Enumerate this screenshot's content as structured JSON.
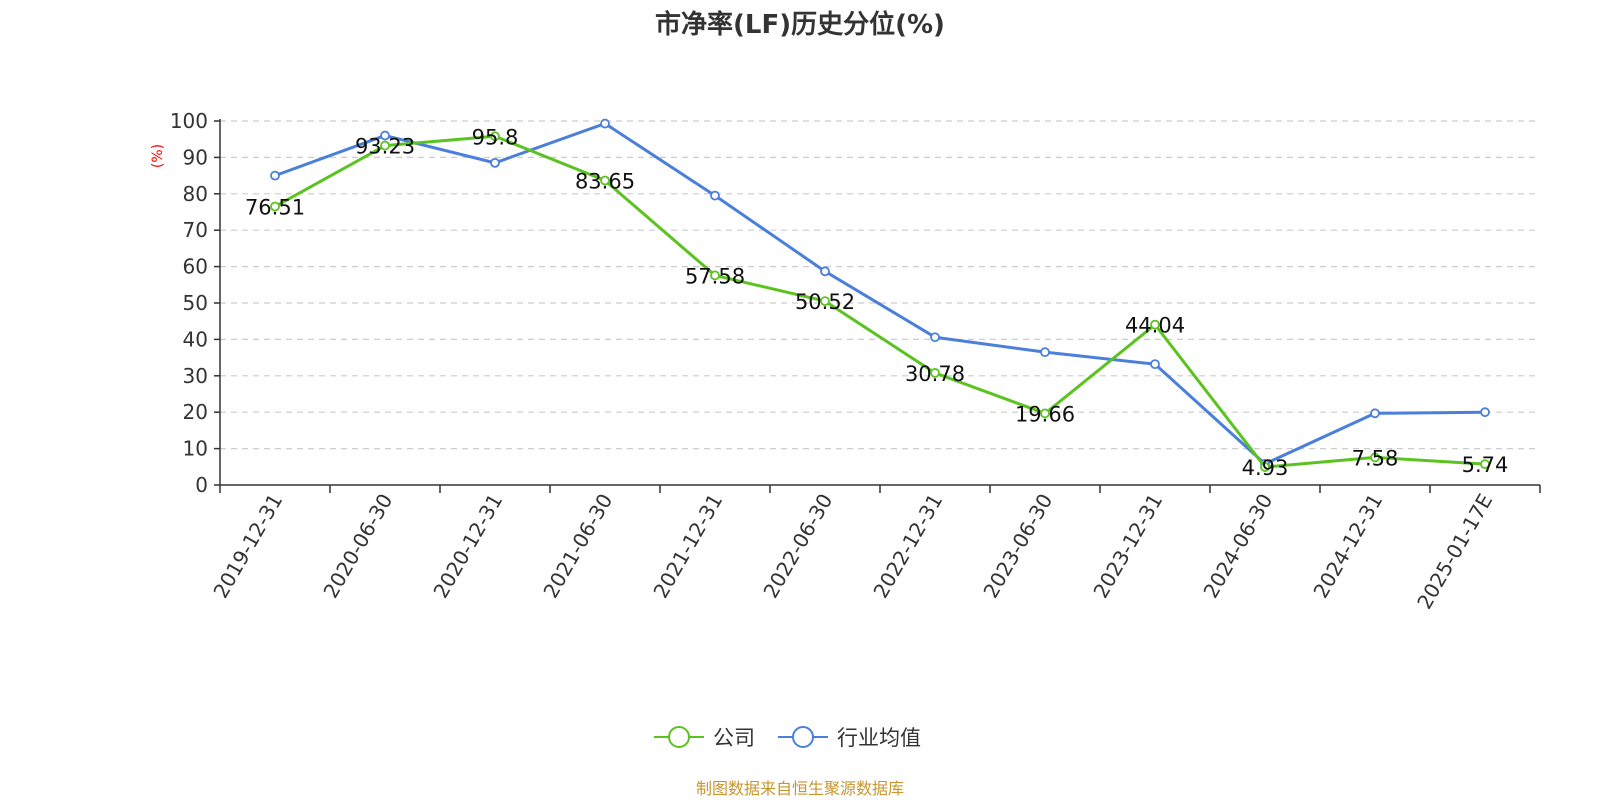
{
  "chart_data": {
    "type": "line",
    "title": "市净率(LF)历史分位(%)",
    "ylabel": "(%)",
    "ylim": [
      0,
      100
    ],
    "yticks": [
      0,
      10,
      20,
      30,
      40,
      50,
      60,
      70,
      80,
      90,
      100
    ],
    "grid": true,
    "legend_position": "bottom-center",
    "categories": [
      "2019-12-31",
      "2020-06-30",
      "2020-12-31",
      "2021-06-30",
      "2021-12-31",
      "2022-06-30",
      "2022-12-31",
      "2023-06-30",
      "2023-12-31",
      "2024-06-30",
      "2024-12-31",
      "2025-01-17E"
    ],
    "series": [
      {
        "name": "公司",
        "color": "#5bc31f",
        "values": [
          76.51,
          93.23,
          95.8,
          83.65,
          57.58,
          50.52,
          30.78,
          19.66,
          44.04,
          4.93,
          7.58,
          5.74
        ],
        "labels": [
          "76.51",
          "93.23",
          "95.8",
          "83.65",
          "57.58",
          "50.52",
          "30.78",
          "19.66",
          "44.04",
          "4.93",
          "7.58",
          "5.74"
        ]
      },
      {
        "name": "行业均值",
        "color": "#4a7fdc",
        "values": [
          85,
          96,
          88.5,
          99.3,
          79.5,
          58.7,
          40.6,
          36.5,
          33.2,
          5.8,
          19.7,
          20
        ]
      }
    ]
  },
  "footer": {
    "source": "制图数据来自恒生聚源数据库"
  }
}
